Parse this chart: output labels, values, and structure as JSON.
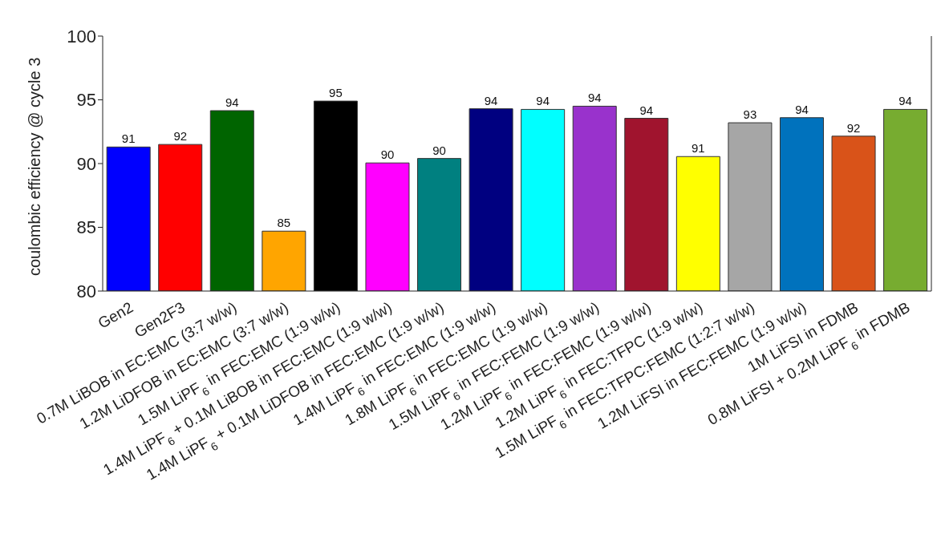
{
  "chart_data": {
    "type": "bar",
    "ylabel": "coulombic efficiency @ cycle 3",
    "categories": [
      "Gen2",
      "Gen2F3",
      "0.7M LiBOB in EC:EMC (3:7 w/w)",
      "1.2M LiDFOB in EC:EMC (3:7 w/w)",
      "1.5M LiPF$_{6}$ in FEC:EMC (1:9 w/w)",
      "1.4M LiPF$_{6}$ + 0.1M LiBOB in FEC:EMC (1:9 w/w)",
      "1.4M LiPF$_{6}$ + 0.1M LiDFOB in FEC:EMC (1:9 w/w)",
      "1.4M LiPF$_{6}$ in FEC:EMC (1:9 w/w)",
      "1.8M LiPF$_{6}$ in FEC:EMC (1:9 w/w)",
      "1.5M LiPF$_{6}$ in FEC:FEMC (1:9 w/w)",
      "1.2M LiPF$_{6}$ in FEC:FEMC (1:9 w/w)",
      "1.2M LiPF$_{6}$ in FEC:TFPC (1:9 w/w)",
      "1.5M LiPF$_{6}$ in FEC:TFPC:FEMC (1:2:7 w/w)",
      "1.2M LiFSI in FEC:FEMC (1:9 w/w)",
      "1M LiFSI in FDMB",
      "0.8M LiFSI + 0.2M LiPF$_{6}$ in FDMB"
    ],
    "values": [
      91.3,
      91.5,
      94.15,
      84.7,
      94.9,
      90.05,
      90.4,
      94.3,
      94.25,
      94.5,
      93.55,
      90.55,
      93.2,
      93.6,
      92.15,
      94.25
    ],
    "value_labels": [
      "91",
      "92",
      "94",
      "85",
      "95",
      "90",
      "90",
      "94",
      "94",
      "94",
      "94",
      "91",
      "93",
      "94",
      "92",
      "94"
    ],
    "colors": [
      "#0000ff",
      "#ff0000",
      "#006400",
      "#ffa500",
      "#000000",
      "#ff00ff",
      "#008080",
      "#000080",
      "#00ffff",
      "#9932cc",
      "#a0142e",
      "#ffff00",
      "#a6a6a6",
      "#0072bd",
      "#d95319",
      "#77ac30"
    ],
    "ylim": [
      80,
      100
    ],
    "yticks": [
      80,
      85,
      90,
      95,
      100
    ],
    "grid": false,
    "legend": false
  }
}
